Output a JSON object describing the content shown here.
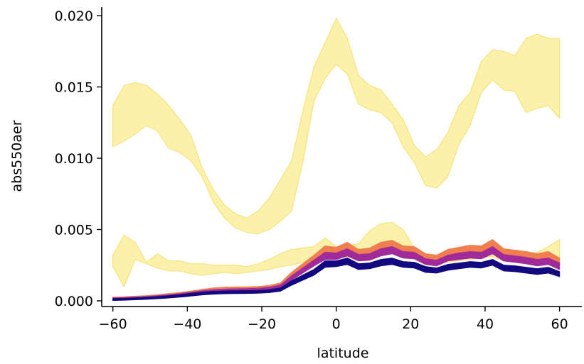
{
  "chart_data": {
    "type": "area",
    "title": "",
    "xlabel": "latitude",
    "ylabel": "abs550aer",
    "xlim": [
      -63,
      66
    ],
    "ylim": [
      -0.0004,
      0.0206
    ],
    "xticks": [
      -60,
      -40,
      -20,
      0,
      20,
      40,
      60
    ],
    "yticks": [
      0.0,
      0.005,
      0.01,
      0.015,
      0.02
    ],
    "xtick_labels": [
      "−60",
      "−40",
      "−20",
      "0",
      "20",
      "40",
      "60"
    ],
    "ytick_labels": [
      "0.000",
      "0.005",
      "0.010",
      "0.015",
      "0.020"
    ],
    "grid": false,
    "legend": "none",
    "bands": [
      {
        "color": "#fcee9b",
        "edge": "#f7e27a",
        "opacity": 0.85,
        "x": [
          -60,
          -57,
          -54,
          -51,
          -48,
          -45,
          -42,
          -39,
          -36,
          -33,
          -30,
          -27,
          -24,
          -21,
          -18,
          -15,
          -12,
          -9,
          -6,
          -3,
          0,
          3,
          6,
          9,
          12,
          15,
          18,
          21,
          24,
          27,
          30,
          33,
          36,
          39,
          42,
          45,
          48,
          51,
          54,
          57,
          60
        ],
        "upper": [
          0.0137,
          0.0151,
          0.0153,
          0.0151,
          0.0145,
          0.0137,
          0.0127,
          0.0116,
          0.0093,
          0.0078,
          0.0067,
          0.0061,
          0.0058,
          0.0063,
          0.0072,
          0.0085,
          0.0098,
          0.0133,
          0.0164,
          0.0181,
          0.0198,
          0.0184,
          0.0158,
          0.0151,
          0.0148,
          0.0138,
          0.0127,
          0.0109,
          0.0101,
          0.0106,
          0.0118,
          0.0137,
          0.0146,
          0.0168,
          0.0176,
          0.0175,
          0.0172,
          0.0184,
          0.0187,
          0.0184,
          0.0184
        ],
        "lower": [
          0.0108,
          0.0112,
          0.0117,
          0.0123,
          0.0119,
          0.0107,
          0.0104,
          0.0098,
          0.0087,
          0.0069,
          0.0058,
          0.0051,
          0.0048,
          0.0047,
          0.005,
          0.0056,
          0.0063,
          0.0097,
          0.014,
          0.0156,
          0.0166,
          0.0159,
          0.0138,
          0.0134,
          0.0132,
          0.0125,
          0.0108,
          0.0097,
          0.0081,
          0.0079,
          0.0087,
          0.011,
          0.0123,
          0.0146,
          0.0155,
          0.0148,
          0.0147,
          0.0132,
          0.0135,
          0.0137,
          0.0128
        ]
      },
      {
        "color": "#fcee9b",
        "edge": "#f7e27a",
        "opacity": 0.85,
        "x": [
          -60,
          -57,
          -54,
          -51,
          -48,
          -45,
          -42,
          -39,
          -36,
          -33,
          -30,
          -27,
          -24,
          -21,
          -18,
          -15,
          -12,
          -9,
          -6,
          -3,
          0,
          3,
          6,
          9,
          12,
          15,
          18,
          21,
          24,
          27,
          30,
          33,
          36,
          39,
          42,
          45,
          48,
          51,
          54,
          57,
          60
        ],
        "upper": [
          0.0032,
          0.0046,
          0.0041,
          0.0027,
          0.0033,
          0.0028,
          0.0028,
          0.0026,
          0.0026,
          0.0025,
          0.0025,
          0.0025,
          0.0024,
          0.0026,
          0.0029,
          0.0033,
          0.0036,
          0.0037,
          0.0038,
          0.0044,
          0.0038,
          0.0039,
          0.004,
          0.0049,
          0.0054,
          0.0055,
          0.005,
          0.0037,
          0.0033,
          0.0031,
          0.003,
          0.0032,
          0.0034,
          0.0037,
          0.0038,
          0.0033,
          0.0034,
          0.0033,
          0.0034,
          0.0038,
          0.0043
        ],
        "lower": [
          0.0024,
          0.001,
          0.0029,
          0.0026,
          0.0023,
          0.0021,
          0.0021,
          0.0019,
          0.0018,
          0.0019,
          0.002,
          0.0019,
          0.002,
          0.0021,
          0.0022,
          0.0024,
          0.0025,
          0.0027,
          0.0029,
          0.003,
          0.0032,
          0.0031,
          0.003,
          0.0035,
          0.0041,
          0.0037,
          0.0034,
          0.003,
          0.0029,
          0.0027,
          0.0027,
          0.0028,
          0.0029,
          0.003,
          0.0031,
          0.0028,
          0.0028,
          0.0026,
          0.0027,
          0.0026,
          0.0026
        ]
      },
      {
        "color": "#f07f4f",
        "edge": "#f07f4f",
        "opacity": 1,
        "x": [
          -60,
          -57,
          -54,
          -51,
          -48,
          -45,
          -42,
          -39,
          -36,
          -33,
          -30,
          -27,
          -24,
          -21,
          -18,
          -15,
          -12,
          -9,
          -6,
          -3,
          0,
          3,
          6,
          9,
          12,
          15,
          18,
          21,
          24,
          27,
          30,
          33,
          36,
          39,
          42,
          45,
          48,
          51,
          54,
          57,
          60
        ],
        "upper": [
          0.00025,
          0.00028,
          0.00032,
          0.00036,
          0.00042,
          0.0005,
          0.00058,
          0.00068,
          0.0008,
          0.0009,
          0.00095,
          0.00097,
          0.00098,
          0.001,
          0.00108,
          0.00125,
          0.002,
          0.0026,
          0.0032,
          0.00385,
          0.00375,
          0.0041,
          0.0036,
          0.0037,
          0.0041,
          0.00425,
          0.00385,
          0.0038,
          0.0033,
          0.0032,
          0.0036,
          0.00375,
          0.0039,
          0.00385,
          0.0043,
          0.00365,
          0.00355,
          0.00345,
          0.0033,
          0.00345,
          0.003
        ],
        "lower": [
          5e-05,
          8e-05,
          0.00012,
          0.00016,
          0.00022,
          0.00028,
          0.00035,
          0.00045,
          0.00055,
          0.00062,
          0.00066,
          0.00068,
          0.0007,
          0.00073,
          0.0008,
          0.00095,
          0.0015,
          0.002,
          0.0025,
          0.003,
          0.003,
          0.0033,
          0.003,
          0.003,
          0.0033,
          0.00345,
          0.00315,
          0.0031,
          0.0027,
          0.0026,
          0.00295,
          0.003,
          0.0032,
          0.0031,
          0.0034,
          0.003,
          0.00295,
          0.00285,
          0.0027,
          0.00285,
          0.0025
        ]
      },
      {
        "color": "#a12a9a",
        "edge": "#a12a9a",
        "opacity": 1,
        "x": [
          -60,
          -57,
          -54,
          -51,
          -48,
          -45,
          -42,
          -39,
          -36,
          -33,
          -30,
          -27,
          -24,
          -21,
          -18,
          -15,
          -12,
          -9,
          -6,
          -3,
          0,
          3,
          6,
          9,
          12,
          15,
          18,
          21,
          24,
          27,
          30,
          33,
          36,
          39,
          42,
          45,
          48,
          51,
          54,
          57,
          60
        ],
        "upper": [
          0.0002,
          0.00022,
          0.00026,
          0.0003,
          0.00035,
          0.00042,
          0.0005,
          0.0006,
          0.0007,
          0.00078,
          0.00082,
          0.00084,
          0.00085,
          0.00088,
          0.00095,
          0.0011,
          0.00175,
          0.0023,
          0.00285,
          0.0034,
          0.00335,
          0.00365,
          0.00325,
          0.0033,
          0.00365,
          0.0038,
          0.00345,
          0.0034,
          0.00295,
          0.00285,
          0.0032,
          0.00335,
          0.00345,
          0.0034,
          0.0038,
          0.00325,
          0.00315,
          0.00305,
          0.0029,
          0.003,
          0.00265
        ],
        "lower": [
          8e-05,
          0.0001,
          0.00014,
          0.00018,
          0.00023,
          0.00029,
          0.00036,
          0.00045,
          0.00054,
          0.0006,
          0.00064,
          0.00066,
          0.00067,
          0.0007,
          0.00076,
          0.0009,
          0.00145,
          0.00195,
          0.00245,
          0.0029,
          0.0029,
          0.00315,
          0.0028,
          0.00285,
          0.00315,
          0.0033,
          0.003,
          0.00295,
          0.00255,
          0.00245,
          0.0028,
          0.0029,
          0.003,
          0.00295,
          0.0033,
          0.0028,
          0.0027,
          0.0026,
          0.00245,
          0.00255,
          0.0022
        ]
      },
      {
        "color": "#12087f",
        "edge": "#12087f",
        "opacity": 1,
        "x": [
          -60,
          -57,
          -54,
          -51,
          -48,
          -45,
          -42,
          -39,
          -36,
          -33,
          -30,
          -27,
          -24,
          -21,
          -18,
          -15,
          -12,
          -9,
          -6,
          -3,
          0,
          3,
          6,
          9,
          12,
          15,
          18,
          21,
          24,
          27,
          30,
          33,
          36,
          39,
          42,
          45,
          48,
          51,
          54,
          57,
          60
        ],
        "upper": [
          0.00015,
          0.00017,
          0.0002,
          0.00024,
          0.00029,
          0.00035,
          0.00043,
          0.00052,
          0.0006,
          0.00066,
          0.00069,
          0.0007,
          0.00071,
          0.00073,
          0.00078,
          0.0009,
          0.0014,
          0.0018,
          0.0022,
          0.0028,
          0.0028,
          0.003,
          0.0026,
          0.00265,
          0.0029,
          0.003,
          0.00275,
          0.0027,
          0.0024,
          0.0023,
          0.00255,
          0.00265,
          0.00275,
          0.0027,
          0.0029,
          0.0025,
          0.00245,
          0.00235,
          0.00225,
          0.00235,
          0.00205
        ],
        "lower": [
          3e-05,
          5e-05,
          8e-05,
          0.00011,
          0.00015,
          0.0002,
          0.00026,
          0.00034,
          0.00042,
          0.00047,
          0.0005,
          0.00051,
          0.00052,
          0.00054,
          0.00058,
          0.00068,
          0.0011,
          0.00145,
          0.0018,
          0.00235,
          0.0024,
          0.00255,
          0.0022,
          0.00225,
          0.00245,
          0.00255,
          0.00235,
          0.0023,
          0.002,
          0.00195,
          0.00215,
          0.00225,
          0.00235,
          0.0023,
          0.0025,
          0.0021,
          0.00205,
          0.00195,
          0.00185,
          0.00195,
          0.0017
        ]
      }
    ]
  }
}
